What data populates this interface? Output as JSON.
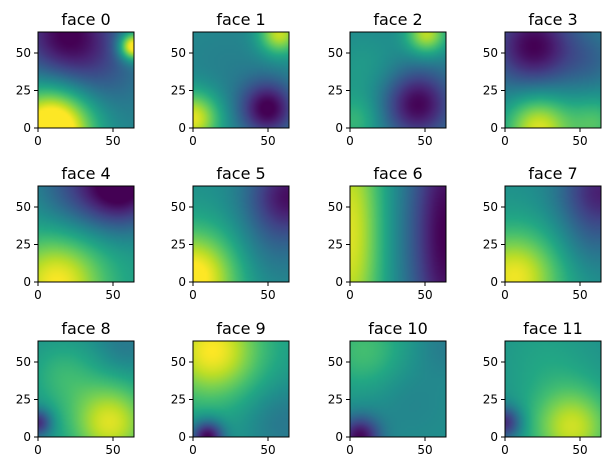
{
  "chart_data": {
    "type": "heatmap",
    "colormap": "viridis",
    "grid": "3x4",
    "panels": [
      {
        "title": "face 0",
        "xlim": [
          0,
          64
        ],
        "ylim": [
          0,
          64
        ],
        "xticks": [
          0,
          50
        ],
        "yticks": [
          0,
          25,
          50
        ],
        "origin": "lower",
        "field": {
          "base": 0.45,
          "kernels": [
            {
              "x": 0.15,
              "y": 0.0,
              "s": 0.3,
              "a": 0.75
            },
            {
              "x": 0.99,
              "y": 0.85,
              "s": 0.1,
              "a": 0.7
            },
            {
              "x": 0.3,
              "y": 0.97,
              "s": 0.35,
              "a": -0.45
            },
            {
              "x": 0.7,
              "y": 0.55,
              "s": 0.3,
              "a": -0.1
            }
          ]
        }
      },
      {
        "title": "face 1",
        "xlim": [
          0,
          64
        ],
        "ylim": [
          0,
          64
        ],
        "xticks": [
          0,
          50
        ],
        "yticks": [
          0,
          25,
          50
        ],
        "origin": "lower",
        "field": {
          "base": 0.48,
          "kernels": [
            {
              "x": 0.0,
              "y": 0.1,
              "s": 0.2,
              "a": 0.5
            },
            {
              "x": 0.9,
              "y": 0.98,
              "s": 0.15,
              "a": 0.45
            },
            {
              "x": 0.78,
              "y": 0.2,
              "s": 0.2,
              "a": -0.48
            },
            {
              "x": 0.4,
              "y": 0.55,
              "s": 0.4,
              "a": -0.05
            }
          ]
        }
      },
      {
        "title": "face 2",
        "xlim": [
          0,
          64
        ],
        "ylim": [
          0,
          64
        ],
        "xticks": [
          0,
          50
        ],
        "yticks": [
          0,
          25,
          50
        ],
        "origin": "lower",
        "field": {
          "base": 0.45,
          "kernels": [
            {
              "x": 0.7,
              "y": 0.25,
              "s": 0.25,
              "a": -0.45
            },
            {
              "x": 0.8,
              "y": 0.98,
              "s": 0.15,
              "a": 0.45
            },
            {
              "x": 0.05,
              "y": 0.05,
              "s": 0.2,
              "a": 0.2
            },
            {
              "x": 0.15,
              "y": 0.6,
              "s": 0.3,
              "a": 0.1
            }
          ]
        }
      },
      {
        "title": "face 3",
        "xlim": [
          0,
          64
        ],
        "ylim": [
          0,
          64
        ],
        "xticks": [
          0,
          50
        ],
        "yticks": [
          0,
          25,
          50
        ],
        "origin": "lower",
        "field": {
          "base": 0.45,
          "kernels": [
            {
              "x": 0.3,
              "y": 0.85,
              "s": 0.3,
              "a": -0.45
            },
            {
              "x": 0.35,
              "y": 0.0,
              "s": 0.25,
              "a": 0.5
            },
            {
              "x": 0.95,
              "y": 0.05,
              "s": 0.2,
              "a": 0.25
            },
            {
              "x": 0.9,
              "y": 0.7,
              "s": 0.2,
              "a": -0.1
            }
          ]
        }
      },
      {
        "title": "face 4",
        "xlim": [
          0,
          64
        ],
        "ylim": [
          0,
          64
        ],
        "xticks": [
          0,
          50
        ],
        "yticks": [
          0,
          25,
          50
        ],
        "origin": "lower",
        "field": {
          "base": 0.55,
          "kernels": [
            {
              "x": 0.2,
              "y": 0.0,
              "s": 0.35,
              "a": 0.45
            },
            {
              "x": 0.9,
              "y": 1.0,
              "s": 0.3,
              "a": -0.55
            },
            {
              "x": 0.4,
              "y": 1.0,
              "s": 0.35,
              "a": -0.25
            }
          ]
        }
      },
      {
        "title": "face 5",
        "xlim": [
          0,
          64
        ],
        "ylim": [
          0,
          64
        ],
        "xticks": [
          0,
          50
        ],
        "yticks": [
          0,
          25,
          50
        ],
        "origin": "lower",
        "field": {
          "base": 0.5,
          "kernels": [
            {
              "x": 0.0,
              "y": 0.05,
              "s": 0.35,
              "a": 0.55
            },
            {
              "x": 1.0,
              "y": 0.9,
              "s": 0.3,
              "a": -0.45
            },
            {
              "x": 0.8,
              "y": 0.3,
              "s": 0.3,
              "a": -0.1
            }
          ]
        }
      },
      {
        "title": "face 6",
        "xlim": [
          0,
          64
        ],
        "ylim": [
          0,
          64
        ],
        "xticks": [
          0,
          50
        ],
        "yticks": [
          0,
          25,
          50
        ],
        "origin": "lower",
        "field": {
          "base": 0.5,
          "kernels": [
            {
              "x": 0.0,
              "y": 0.5,
              "s": 0.25,
              "a": 0.45,
              "sy": 4.0
            },
            {
              "x": 1.0,
              "y": 0.5,
              "s": 0.25,
              "a": -0.5,
              "sy": 4.0
            },
            {
              "x": 0.55,
              "y": 0.5,
              "s": 0.2,
              "a": -0.05,
              "sy": 4.0
            }
          ]
        }
      },
      {
        "title": "face 7",
        "xlim": [
          0,
          64
        ],
        "ylim": [
          0,
          64
        ],
        "xticks": [
          0,
          50
        ],
        "yticks": [
          0,
          25,
          50
        ],
        "origin": "lower",
        "field": {
          "base": 0.5,
          "kernels": [
            {
              "x": 0.1,
              "y": 0.05,
              "s": 0.35,
              "a": 0.48
            },
            {
              "x": 1.0,
              "y": 0.95,
              "s": 0.3,
              "a": -0.4
            },
            {
              "x": 0.9,
              "y": 0.4,
              "s": 0.25,
              "a": -0.1
            }
          ]
        }
      },
      {
        "title": "face 8",
        "xlim": [
          0,
          64
        ],
        "ylim": [
          0,
          64
        ],
        "xticks": [
          0,
          50
        ],
        "yticks": [
          0,
          25,
          50
        ],
        "origin": "lower",
        "field": {
          "base": 0.5,
          "kernels": [
            {
              "x": 0.75,
              "y": 0.15,
              "s": 0.3,
              "a": 0.45
            },
            {
              "x": 0.0,
              "y": 0.15,
              "s": 0.1,
              "a": -0.4
            },
            {
              "x": 0.25,
              "y": 0.65,
              "s": 0.25,
              "a": 0.15
            },
            {
              "x": 0.9,
              "y": 0.95,
              "s": 0.2,
              "a": -0.1
            }
          ]
        }
      },
      {
        "title": "face 9",
        "xlim": [
          0,
          64
        ],
        "ylim": [
          0,
          64
        ],
        "xticks": [
          0,
          50
        ],
        "yticks": [
          0,
          25,
          50
        ],
        "origin": "lower",
        "field": {
          "base": 0.55,
          "kernels": [
            {
              "x": 0.2,
              "y": 0.9,
              "s": 0.35,
              "a": 0.45
            },
            {
              "x": 0.15,
              "y": 0.0,
              "s": 0.12,
              "a": -0.55
            },
            {
              "x": 0.95,
              "y": 0.15,
              "s": 0.3,
              "a": -0.15
            }
          ]
        }
      },
      {
        "title": "face 10",
        "xlim": [
          0,
          64
        ],
        "ylim": [
          0,
          64
        ],
        "xticks": [
          0,
          50
        ],
        "yticks": [
          0,
          25,
          50
        ],
        "origin": "lower",
        "field": {
          "base": 0.5,
          "kernels": [
            {
              "x": 0.15,
              "y": 0.9,
              "s": 0.3,
              "a": 0.2
            },
            {
              "x": 0.1,
              "y": 0.0,
              "s": 0.15,
              "a": -0.48
            },
            {
              "x": 0.6,
              "y": 0.4,
              "s": 0.3,
              "a": -0.05
            },
            {
              "x": 1.0,
              "y": 0.95,
              "s": 0.2,
              "a": -0.08
            }
          ]
        }
      },
      {
        "title": "face 11",
        "xlim": [
          0,
          64
        ],
        "ylim": [
          0,
          64
        ],
        "xticks": [
          0,
          50
        ],
        "yticks": [
          0,
          25,
          50
        ],
        "origin": "lower",
        "field": {
          "base": 0.5,
          "kernels": [
            {
              "x": 0.7,
              "y": 0.1,
              "s": 0.3,
              "a": 0.42
            },
            {
              "x": 0.0,
              "y": 0.15,
              "s": 0.12,
              "a": -0.4
            },
            {
              "x": 0.4,
              "y": 0.8,
              "s": 0.35,
              "a": 0.08
            }
          ]
        }
      }
    ]
  }
}
